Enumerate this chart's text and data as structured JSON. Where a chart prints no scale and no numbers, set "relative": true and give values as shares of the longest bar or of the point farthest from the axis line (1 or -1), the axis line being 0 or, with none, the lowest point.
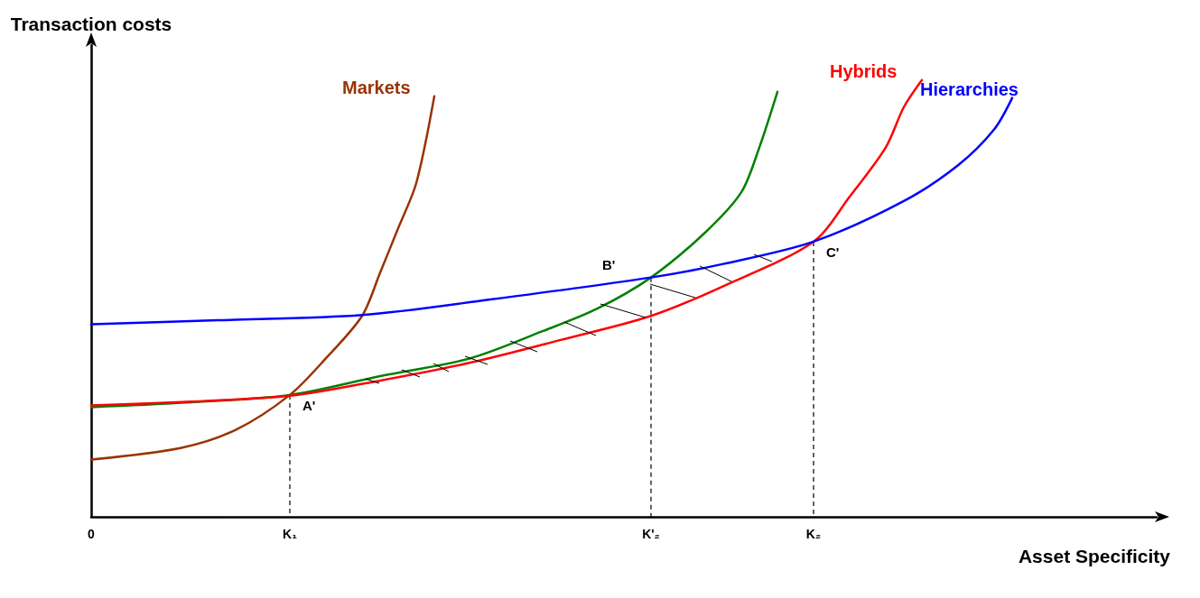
{
  "chart_data": {
    "type": "line",
    "relative": true,
    "xlabel": "Asset Specificity",
    "ylabel": "Transaction costs",
    "categories": [
      "0",
      null,
      null,
      null,
      null,
      null,
      null,
      null,
      null,
      null,
      null,
      "K₁",
      null,
      null,
      null,
      null,
      null,
      null,
      null,
      null,
      null,
      null,
      null,
      null,
      null,
      null,
      null,
      null,
      null,
      null,
      null,
      "K'₂",
      null,
      null,
      null,
      null,
      null,
      null,
      null,
      null,
      "K₂",
      null,
      null,
      null,
      null,
      null,
      null,
      null,
      null,
      null,
      null,
      null,
      null,
      null,
      null,
      null,
      null,
      null,
      null,
      null
    ],
    "legend": false,
    "grid": false,
    "marker": "none",
    "annotations": [
      {
        "text": "A'",
        "x": "K₁",
        "y": 0.279
      },
      {
        "text": "B'",
        "x": "K'₂",
        "y": 0.548
      },
      {
        "text": "C'",
        "x": "K₂",
        "y": 0.63
      }
    ],
    "series": [
      {
        "name": "Markets",
        "color": "#993300",
        "values": [
          0.131,
          null,
          null,
          null,
          null,
          0.158,
          null,
          null,
          0.199,
          null,
          null,
          0.279,
          null,
          0.363,
          null,
          0.46,
          0.559,
          0.661,
          0.764,
          0.963,
          null,
          null,
          null,
          null,
          null,
          null,
          null,
          null,
          null,
          null,
          null,
          null,
          null,
          null,
          null,
          null,
          null,
          null,
          null,
          null,
          null,
          null,
          null,
          null,
          null,
          null,
          null,
          null,
          null,
          null,
          null,
          null,
          null,
          null,
          null,
          null,
          null,
          null,
          null,
          null
        ]
      },
      {
        "color": "#008000",
        "values": [
          0.251,
          null,
          null,
          null,
          null,
          0.261,
          null,
          null,
          null,
          null,
          null,
          0.279,
          null,
          null,
          null,
          null,
          0.322,
          null,
          null,
          null,
          null,
          0.363,
          null,
          null,
          null,
          0.425,
          null,
          null,
          0.476,
          null,
          null,
          0.548,
          null,
          null,
          0.651,
          null,
          0.743,
          0.846,
          0.973,
          null,
          null,
          null,
          null,
          null,
          null,
          null,
          null,
          null,
          null,
          null,
          null,
          null,
          null,
          null,
          null,
          null,
          null,
          null,
          null,
          null
        ]
      },
      {
        "name": "Hybrids",
        "color": "#ff0000",
        "values": [
          0.255,
          null,
          null,
          null,
          null,
          0.263,
          null,
          null,
          null,
          null,
          null,
          0.277,
          null,
          null,
          null,
          null,
          0.312,
          null,
          null,
          null,
          null,
          0.353,
          null,
          null,
          null,
          null,
          0.405,
          null,
          null,
          null,
          null,
          0.46,
          null,
          null,
          null,
          0.528,
          null,
          null,
          null,
          null,
          0.63,
          null,
          0.733,
          null,
          0.846,
          0.938,
          1,
          null,
          null,
          null,
          null,
          null,
          null,
          null,
          null,
          null,
          null,
          null,
          null,
          null
        ]
      },
      {
        "name": "Hierarchies",
        "color": "#0000ff",
        "values": [
          0.441,
          null,
          null,
          null,
          null,
          null,
          null,
          0.45,
          null,
          null,
          null,
          null,
          null,
          null,
          null,
          0.462,
          null,
          null,
          null,
          null,
          null,
          null,
          0.497,
          null,
          null,
          null,
          null,
          null,
          null,
          null,
          null,
          0.548,
          null,
          null,
          null,
          0.579,
          null,
          null,
          null,
          null,
          0.63,
          null,
          null,
          null,
          null,
          0.723,
          null,
          null,
          0.805,
          null,
          0.887,
          0.959,
          null,
          null,
          null,
          null,
          null,
          null,
          null,
          null
        ]
      }
    ]
  }
}
